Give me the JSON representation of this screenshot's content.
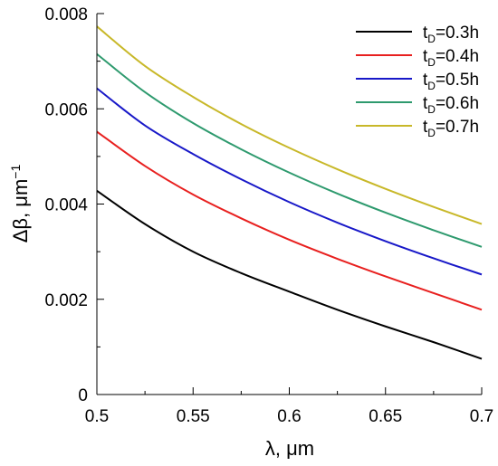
{
  "chart_data": {
    "type": "line",
    "xlabel": "λ, μm",
    "ylabel": "Δβ, μm",
    "ylabel_superscript": "−1",
    "xlim": [
      0.5,
      0.7
    ],
    "ylim": [
      0,
      0.008
    ],
    "x_ticks": [
      0.5,
      0.55,
      0.6,
      0.65,
      0.7
    ],
    "x_tick_labels": [
      "0.5",
      "0.55",
      "0.6",
      "0.65",
      "0.7"
    ],
    "y_ticks": [
      0,
      0.002,
      0.004,
      0.006,
      0.008
    ],
    "y_tick_labels": [
      "0",
      "0.002",
      "0.004",
      "0.006",
      "0.008"
    ],
    "grid": false,
    "legend_position": "top-right",
    "x": [
      0.5,
      0.525,
      0.55,
      0.575,
      0.6,
      0.625,
      0.65,
      0.675,
      0.7
    ],
    "series": [
      {
        "name_main": "t",
        "name_sub": "D",
        "name_rest": "=0.3h",
        "color": "#000000",
        "values": [
          0.00428,
          0.00358,
          0.003,
          0.00255,
          0.00216,
          0.00178,
          0.00143,
          0.0011,
          0.00075
        ]
      },
      {
        "name_main": "t",
        "name_sub": "D",
        "name_rest": "=0.4h",
        "color": "#e8201f",
        "values": [
          0.00552,
          0.0048,
          0.0042,
          0.0037,
          0.00325,
          0.00285,
          0.00248,
          0.00213,
          0.00178
        ]
      },
      {
        "name_main": "t",
        "name_sub": "D",
        "name_rest": "=0.5h",
        "color": "#1818c8",
        "values": [
          0.00643,
          0.00565,
          0.00505,
          0.00452,
          0.00404,
          0.00361,
          0.00322,
          0.00286,
          0.00252
        ]
      },
      {
        "name_main": "t",
        "name_sub": "D",
        "name_rest": "=0.6h",
        "color": "#2e9a6e",
        "values": [
          0.00715,
          0.00635,
          0.0057,
          0.00515,
          0.00466,
          0.00422,
          0.00382,
          0.00345,
          0.0031
        ]
      },
      {
        "name_main": "t",
        "name_sub": "D",
        "name_rest": "=0.7h",
        "color": "#c8b829",
        "values": [
          0.00773,
          0.0069,
          0.00625,
          0.00568,
          0.00518,
          0.00473,
          0.00432,
          0.00394,
          0.00358
        ]
      }
    ]
  }
}
